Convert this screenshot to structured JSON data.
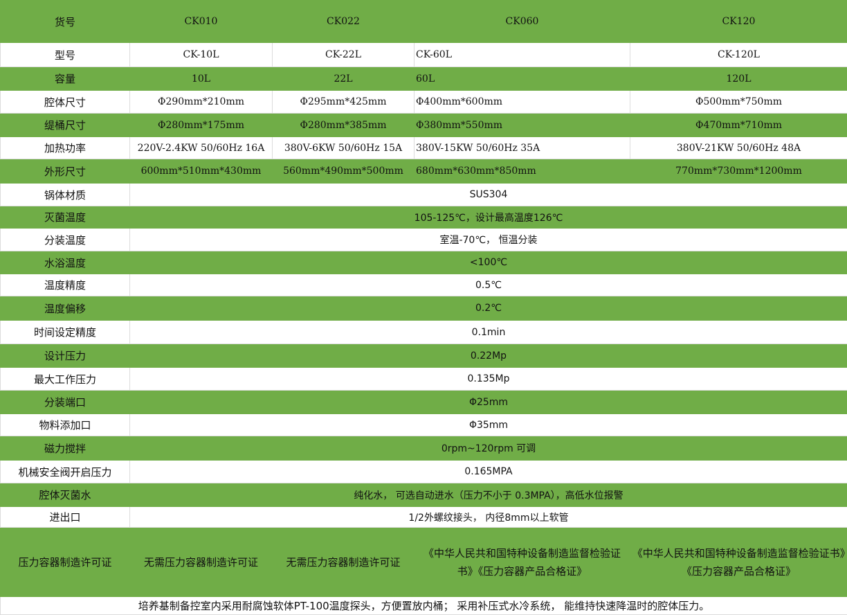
{
  "colors": {
    "accent_green": "#70AD47",
    "white": "#FFFFFF"
  },
  "rows": [
    {
      "label": "货号",
      "cells": [
        "CK010",
        "CK022",
        "CK060",
        "CK120"
      ]
    },
    {
      "label": "型号",
      "cells": [
        "CK-10L",
        "CK-22L",
        "CK-60L",
        "CK-120L"
      ]
    },
    {
      "label": "容量",
      "cells": [
        "10L",
        "22L",
        "60L",
        "120L"
      ]
    },
    {
      "label": "腔体尺寸",
      "cells": [
        "Φ290mm*210mm",
        "Φ295mm*425mm",
        "Φ400mm*600mm",
        "Φ500mm*750mm"
      ]
    },
    {
      "label": "缇桶尺寸",
      "cells": [
        "Φ280mm*175mm",
        "Φ280mm*385mm",
        "Φ380mm*550mm",
        "Φ470mm*710mm"
      ]
    },
    {
      "label": "加热功率",
      "cells": [
        "220V-2.4KW 50/60Hz 16A",
        "380V-6KW 50/60Hz 15A",
        "380V-15KW 50/60Hz 35A",
        "380V-21KW 50/60Hz 48A"
      ]
    },
    {
      "label": "外形尺寸",
      "cells": [
        "600mm*510mm*430mm",
        "560mm*490mm*500mm",
        "680mm*630mm*850mm",
        "770mm*730mm*1200mm"
      ]
    }
  ],
  "merged_rows": [
    {
      "label": "锅体材质",
      "value": "SUS304"
    },
    {
      "label": "灭菌温度",
      "value": "105-125℃，设计最高温度126℃"
    },
    {
      "label": "分装温度",
      "value": "室温-70℃， 恒温分装"
    },
    {
      "label": "水浴温度",
      "value": "<100℃"
    },
    {
      "label": "温度精度",
      "value": "0.5℃"
    },
    {
      "label": "温度偏移",
      "value": "0.2℃"
    },
    {
      "label": "时间设定精度",
      "value": "0.1min"
    },
    {
      "label": "设计压力",
      "value": "0.22Mp"
    },
    {
      "label": "最大工作压力",
      "value": "0.135Mp"
    },
    {
      "label": "分装端口",
      "value": "Φ25mm"
    },
    {
      "label": "物料添加口",
      "value": "Φ35mm"
    },
    {
      "label": "磁力搅拌",
      "value": "0rpm~120rpm 可调"
    },
    {
      "label": "机械安全阀开启压力",
      "value": "0.165MPA"
    },
    {
      "label": "腔体灭菌水",
      "value": "纯化水， 可选自动进水（压力不小于 0.3MPA），高低水位报警"
    },
    {
      "label": "进出口",
      "value": "1/2外螺纹接头， 内径8mm以上软管"
    }
  ],
  "certificate_row": {
    "label": "压力容器制造许可证",
    "cells": [
      "无需压力容器制造许可证",
      "无需压力容器制造许可证",
      "《中华人民共和国特种设备制造监督检验证书》《压力容器产品合格证》",
      "《中华人民共和国特种设备制造监督检验证书》《压力容器产品合格证》"
    ]
  },
  "footer_note": "培养基制备控室内采用耐腐蚀软体PT-100温度探头，方便置放内桶； 采用补压式水冷系统， 能维持快速降温时的腔体压力。"
}
